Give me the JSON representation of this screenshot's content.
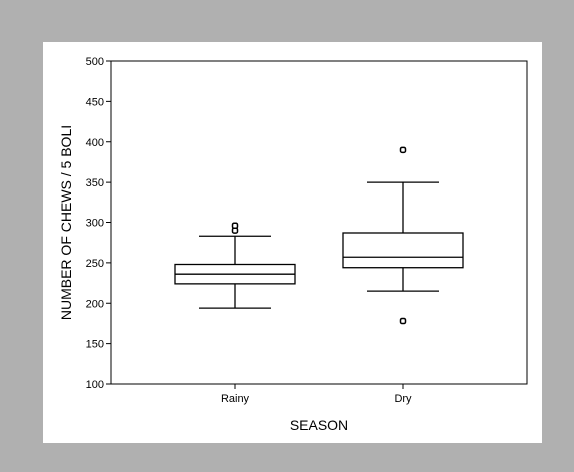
{
  "chart_data": {
    "type": "box",
    "xlabel": "SEASON",
    "ylabel": "NUMBER OF CHEWS / 5 BOLI",
    "ylim": [
      100,
      500
    ],
    "yticks": [
      100,
      150,
      200,
      250,
      300,
      350,
      400,
      450,
      500
    ],
    "ytick_labels": [
      "100",
      "150",
      "200",
      "250",
      "300",
      "350",
      "400",
      "450",
      "500"
    ],
    "categories": [
      "Rainy",
      "Dry"
    ],
    "boxes": [
      {
        "category": "Rainy",
        "whisker_low": 194,
        "q1": 224,
        "median": 236,
        "q3": 248,
        "whisker_high": 283,
        "outliers": [
          290,
          296
        ]
      },
      {
        "category": "Dry",
        "whisker_low": 215,
        "q1": 244,
        "median": 257,
        "q3": 287,
        "whisker_high": 350,
        "outliers": [
          178,
          390
        ]
      }
    ],
    "grid": false,
    "legend": "none"
  }
}
